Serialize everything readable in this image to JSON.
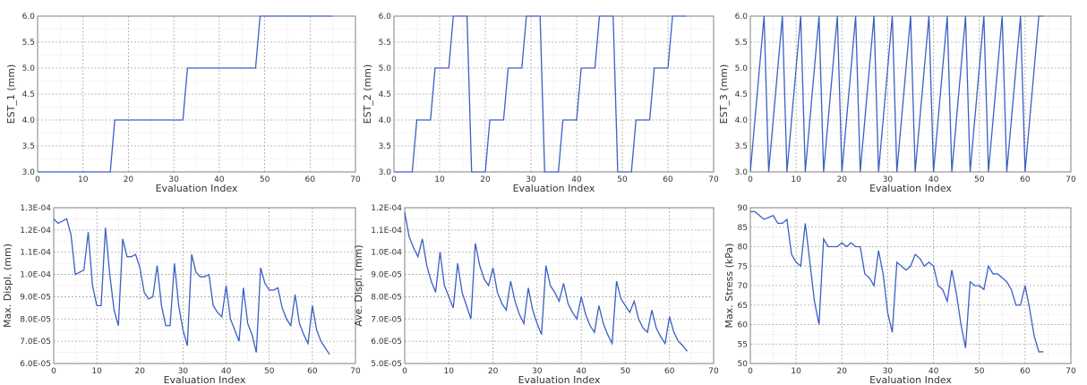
{
  "colors": {
    "series": "#3c5fc4",
    "grid": "#a8a8a8",
    "frame": "#808080",
    "background": "#ffffff"
  },
  "chart_data": [
    {
      "type": "line",
      "xlabel": "Evaluation Index",
      "ylabel": "EST_1 (mm)",
      "xlim": [
        0,
        70
      ],
      "ylim": [
        3.0,
        6.0
      ],
      "xticks": [
        0,
        10,
        20,
        30,
        40,
        50,
        60,
        70
      ],
      "yticks": [
        3.0,
        3.5,
        4.0,
        4.5,
        5.0,
        5.5,
        6.0
      ],
      "ytick_labels": [
        "3.0",
        "3.5",
        "4.0",
        "4.5",
        "5.0",
        "5.5",
        "6.0"
      ],
      "grid": true,
      "series": [
        {
          "x": [
            0,
            16,
            17,
            32,
            33,
            48,
            49,
            65
          ],
          "y": [
            3,
            3,
            4,
            4,
            5,
            5,
            6,
            6
          ]
        }
      ]
    },
    {
      "type": "line",
      "xlabel": "Evaluation Index",
      "ylabel": "EST_2 (mm)",
      "xlim": [
        0,
        70
      ],
      "ylim": [
        3.0,
        6.0
      ],
      "xticks": [
        0,
        10,
        20,
        30,
        40,
        50,
        60,
        70
      ],
      "yticks": [
        3.0,
        3.5,
        4.0,
        4.5,
        5.0,
        5.5,
        6.0
      ],
      "ytick_labels": [
        "3.0",
        "3.5",
        "4.0",
        "4.5",
        "5.0",
        "5.5",
        "6.0"
      ],
      "grid": true,
      "series": [
        {
          "x": [
            0,
            4,
            5,
            8,
            9,
            12,
            13,
            16,
            17,
            20,
            21,
            24,
            25,
            28,
            29,
            32,
            33,
            36,
            37,
            40,
            41,
            44,
            45,
            48,
            49,
            52,
            53,
            56,
            57,
            60,
            61,
            64
          ],
          "y": [
            3,
            3,
            4,
            4,
            5,
            5,
            6,
            6,
            3,
            3,
            4,
            4,
            5,
            5,
            6,
            6,
            3,
            3,
            4,
            4,
            5,
            5,
            6,
            6,
            3,
            3,
            4,
            4,
            5,
            5,
            6,
            6
          ]
        }
      ]
    },
    {
      "type": "line",
      "xlabel": "Evaluation Index",
      "ylabel": "EST_3 (mm)",
      "xlim": [
        0,
        70
      ],
      "ylim": [
        3.0,
        6.0
      ],
      "xticks": [
        0,
        10,
        20,
        30,
        40,
        50,
        60,
        70
      ],
      "yticks": [
        3.0,
        3.5,
        4.0,
        4.5,
        5.0,
        5.5,
        6.0
      ],
      "ytick_labels": [
        "3.0",
        "3.5",
        "4.0",
        "4.5",
        "5.0",
        "5.5",
        "6.0"
      ],
      "grid": true,
      "series": [
        {
          "x": [
            0,
            1,
            2,
            3,
            4,
            5,
            6,
            7,
            8,
            9,
            10,
            11,
            12,
            13,
            14,
            15,
            16,
            17,
            18,
            19,
            20,
            21,
            22,
            23,
            24,
            25,
            26,
            27,
            28,
            29,
            30,
            31,
            32,
            33,
            34,
            35,
            36,
            37,
            38,
            39,
            40,
            41,
            42,
            43,
            44,
            45,
            46,
            47,
            48,
            49,
            50,
            51,
            52,
            53,
            54,
            55,
            56,
            57,
            58,
            59,
            60,
            61,
            62,
            63,
            64
          ],
          "y": [
            3,
            4,
            5,
            6,
            3,
            4,
            5,
            6,
            3,
            4,
            5,
            6,
            3,
            4,
            5,
            6,
            3,
            4,
            5,
            6,
            3,
            4,
            5,
            6,
            3,
            4,
            5,
            6,
            3,
            4,
            5,
            6,
            3,
            4,
            5,
            6,
            3,
            4,
            5,
            6,
            3,
            4,
            5,
            6,
            3,
            4,
            5,
            6,
            3,
            4,
            5,
            6,
            3,
            4,
            5,
            6,
            3,
            4,
            5,
            6,
            3,
            4,
            5,
            6,
            6
          ]
        }
      ]
    },
    {
      "type": "line",
      "xlabel": "Evaluation Index",
      "ylabel": "Max. Displ. (mm)",
      "xlim": [
        0,
        70
      ],
      "ylim": [
        6e-05,
        0.00013
      ],
      "xticks": [
        0,
        10,
        20,
        30,
        40,
        50,
        60,
        70
      ],
      "yticks": [
        6e-05,
        7e-05,
        8e-05,
        9e-05,
        0.0001,
        0.00011,
        0.00012,
        0.00013
      ],
      "ytick_labels": [
        "6.0E-05",
        "7.0E-05",
        "8.0E-05",
        "9.0E-05",
        "1.0E-04",
        "1.1E-04",
        "1.2E-04",
        "1.3E-04"
      ],
      "grid": true,
      "series": [
        {
          "x": [
            0,
            1,
            2,
            3,
            4,
            5,
            6,
            7,
            8,
            9,
            10,
            11,
            12,
            13,
            14,
            15,
            16,
            17,
            18,
            19,
            20,
            21,
            22,
            23,
            24,
            25,
            26,
            27,
            28,
            29,
            30,
            31,
            32,
            33,
            34,
            35,
            36,
            37,
            38,
            39,
            40,
            41,
            42,
            43,
            44,
            45,
            46,
            47,
            48,
            49,
            50,
            51,
            52,
            53,
            54,
            55,
            56,
            57,
            58,
            59,
            60,
            61,
            62,
            63,
            64
          ],
          "y": [
            0.000125,
            0.000123,
            0.000124,
            0.000125,
            0.000118,
            0.0001,
            0.000101,
            0.000102,
            0.000119,
            9.5e-05,
            8.6e-05,
            8.6e-05,
            0.000121,
            0.0001,
            8.4e-05,
            7.7e-05,
            0.000116,
            0.000108,
            0.000108,
            0.000109,
            0.000103,
            9.2e-05,
            8.9e-05,
            9e-05,
            0.000104,
            8.6e-05,
            7.7e-05,
            7.7e-05,
            0.000105,
            8.6e-05,
            7.5e-05,
            6.8e-05,
            0.000109,
            0.000101,
            9.9e-05,
            9.9e-05,
            0.0001,
            8.6e-05,
            8.3e-05,
            8.1e-05,
            9.5e-05,
            8e-05,
            7.5e-05,
            7e-05,
            9.4e-05,
            7.8e-05,
            7.3e-05,
            6.5e-05,
            0.000103,
            9.6e-05,
            9.3e-05,
            9.3e-05,
            9.4e-05,
            8.5e-05,
            8e-05,
            7.7e-05,
            9.1e-05,
            7.8e-05,
            7.3e-05,
            6.9e-05,
            8.6e-05,
            7.5e-05,
            7e-05,
            6.7e-05,
            6.4e-05
          ]
        }
      ]
    },
    {
      "type": "line",
      "xlabel": "Evaluation Index",
      "ylabel": "Ave. Displ. (mm)",
      "xlim": [
        0,
        70
      ],
      "ylim": [
        5e-05,
        0.00012
      ],
      "xticks": [
        0,
        10,
        20,
        30,
        40,
        50,
        60,
        70
      ],
      "yticks": [
        5e-05,
        6e-05,
        7e-05,
        8e-05,
        9e-05,
        0.0001,
        0.00011,
        0.00012
      ],
      "ytick_labels": [
        "5.0E-05",
        "6.0E-05",
        "7.0E-05",
        "8.0E-05",
        "9.0E-05",
        "1.0E-04",
        "1.1E-04",
        "1.2E-04"
      ],
      "grid": true,
      "series": [
        {
          "x": [
            0,
            1,
            2,
            3,
            4,
            5,
            6,
            7,
            8,
            9,
            10,
            11,
            12,
            13,
            14,
            15,
            16,
            17,
            18,
            19,
            20,
            21,
            22,
            23,
            24,
            25,
            26,
            27,
            28,
            29,
            30,
            31,
            32,
            33,
            34,
            35,
            36,
            37,
            38,
            39,
            40,
            41,
            42,
            43,
            44,
            45,
            46,
            47,
            48,
            49,
            50,
            51,
            52,
            53,
            54,
            55,
            56,
            57,
            58,
            59,
            60,
            61,
            62,
            63,
            64
          ],
          "y": [
            0.000118,
            0.000107,
            0.000102,
            9.8e-05,
            0.000106,
            9.4e-05,
            8.7e-05,
            8.2e-05,
            0.0001,
            8.5e-05,
            8e-05,
            7.5e-05,
            9.5e-05,
            8.2e-05,
            7.6e-05,
            7e-05,
            0.000104,
            9.4e-05,
            8.8e-05,
            8.5e-05,
            9.3e-05,
            8.2e-05,
            7.7e-05,
            7.4e-05,
            8.7e-05,
            7.8e-05,
            7.2e-05,
            6.8e-05,
            8.4e-05,
            7.4e-05,
            6.8e-05,
            6.3e-05,
            9.4e-05,
            8.5e-05,
            8.2e-05,
            7.8e-05,
            8.6e-05,
            7.7e-05,
            7.3e-05,
            7e-05,
            8e-05,
            7.2e-05,
            6.7e-05,
            6.4e-05,
            7.6e-05,
            6.8e-05,
            6.3e-05,
            5.9e-05,
            8.7e-05,
            7.9e-05,
            7.6e-05,
            7.3e-05,
            7.8e-05,
            7e-05,
            6.6e-05,
            6.4e-05,
            7.4e-05,
            6.6e-05,
            6.2e-05,
            5.9e-05,
            7.1e-05,
            6.4e-05,
            6e-05,
            5.8e-05,
            5.55e-05
          ]
        }
      ]
    },
    {
      "type": "line",
      "xlabel": "Evaluation Index",
      "ylabel": "Max. Stress (kPa)",
      "xlim": [
        0,
        70
      ],
      "ylim": [
        50,
        90
      ],
      "xticks": [
        0,
        10,
        20,
        30,
        40,
        50,
        60,
        70
      ],
      "yticks": [
        50,
        55,
        60,
        65,
        70,
        75,
        80,
        85,
        90
      ],
      "ytick_labels": [
        "50",
        "55",
        "60",
        "65",
        "70",
        "75",
        "80",
        "85",
        "90"
      ],
      "grid": true,
      "series": [
        {
          "x": [
            0,
            1,
            2,
            3,
            4,
            5,
            6,
            7,
            8,
            9,
            10,
            11,
            12,
            13,
            14,
            15,
            16,
            17,
            18,
            19,
            20,
            21,
            22,
            23,
            24,
            25,
            26,
            27,
            28,
            29,
            30,
            31,
            32,
            33,
            34,
            35,
            36,
            37,
            38,
            39,
            40,
            41,
            42,
            43,
            44,
            45,
            46,
            47,
            48,
            49,
            50,
            51,
            52,
            53,
            54,
            55,
            56,
            57,
            58,
            59,
            60,
            61,
            62,
            63,
            64
          ],
          "y": [
            89,
            89,
            88,
            87,
            87.5,
            88,
            86,
            86,
            87,
            78,
            76,
            75,
            86,
            76,
            66,
            60,
            82,
            80,
            80,
            80,
            81,
            80,
            81,
            80,
            80,
            73,
            72,
            70,
            79,
            73,
            63,
            58,
            76,
            75,
            74,
            75,
            78,
            77,
            75,
            76,
            75,
            70,
            69,
            66,
            74,
            68,
            60,
            54,
            71,
            70,
            70,
            69,
            75,
            73,
            73,
            72,
            71,
            69,
            65,
            65,
            70,
            64,
            57,
            53,
            53
          ]
        }
      ]
    }
  ]
}
